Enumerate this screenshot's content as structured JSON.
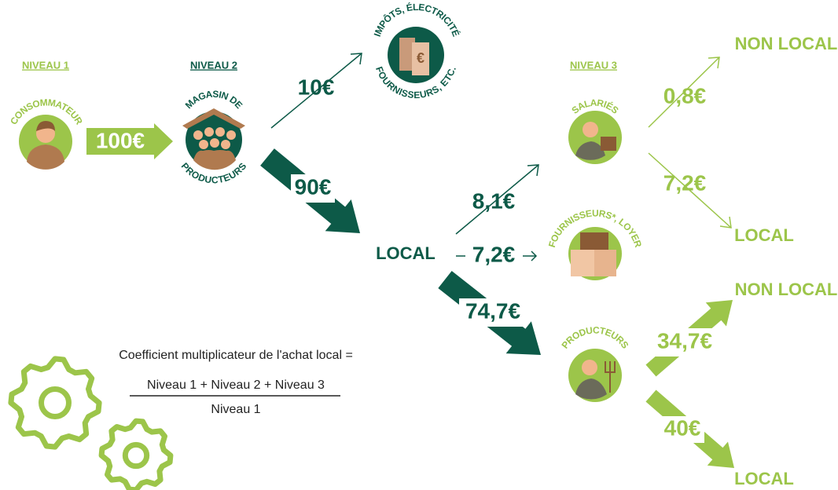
{
  "levels": {
    "level_1": "NIVEAU 1",
    "level_2": "NIVEAU 2",
    "level_3": "NIVEAU 3"
  },
  "nodes": {
    "consumer": "CONSOMMATEUR",
    "store": {
      "top": "MAGASIN DE",
      "bottom": "PRODUCTEURS"
    },
    "costs": {
      "top": "IMPÔTS, ÉLECTRICITÉ",
      "bottom": "FOURNISSEURS, ETC."
    },
    "employees": "SALARIÉS",
    "suppliers": "FOURNISSEURS*, LOYER",
    "producers": "PRODUCTEURS"
  },
  "flows": {
    "consumer_to_store": "100€",
    "store_to_costs": "10€",
    "store_to_local": "90€",
    "local_to_employees": "8,1€",
    "local_to_suppliers": "7,2€",
    "local_to_producers": "74,7€",
    "employees_non_local": "0,8€",
    "employees_local": "7,2€",
    "producers_non_local": "34,7€",
    "producers_local": "40€"
  },
  "destinations": {
    "local_hub": "LOCAL",
    "employees_non_local": "NON LOCAL",
    "employees_local": "LOCAL",
    "producers_non_local": "NON LOCAL",
    "producers_local": "LOCAL"
  },
  "formula": {
    "label": "Coefficient multiplicateur de l'achat local =",
    "numerator": "Niveau 1 + Niveau 2 + Niveau 3",
    "denominator": "Niveau 1"
  }
}
